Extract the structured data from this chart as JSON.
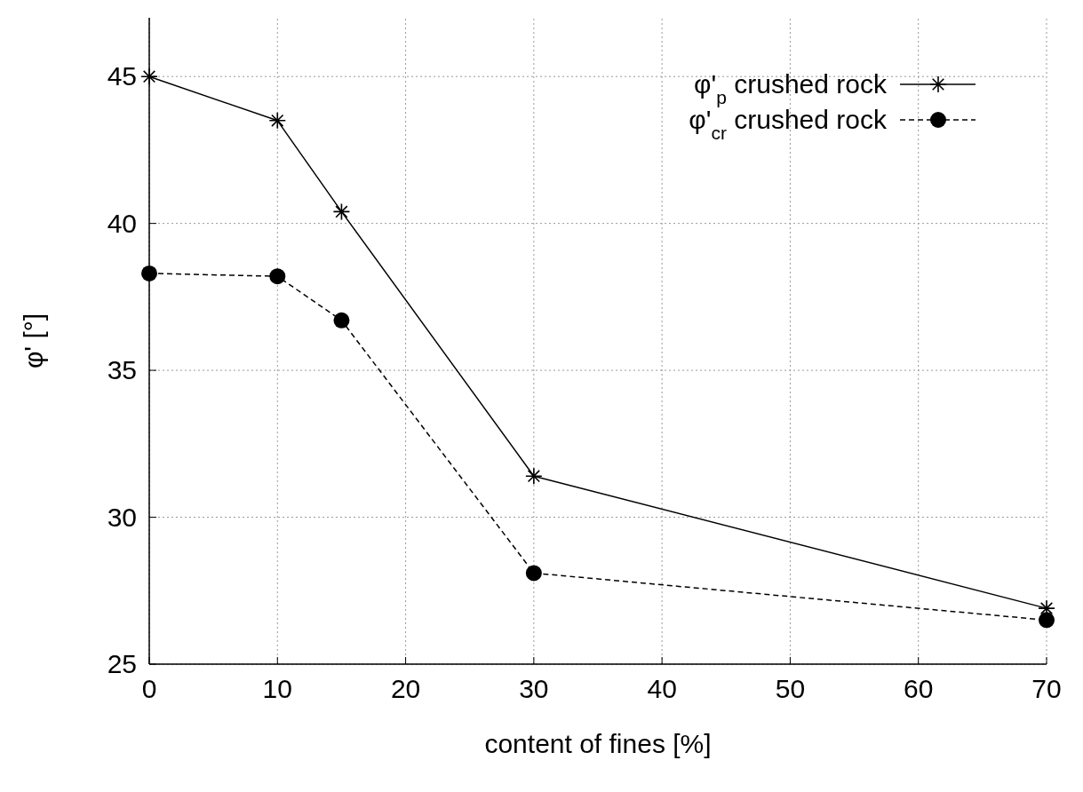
{
  "chart_data": {
    "type": "line",
    "xlabel": "content of fines [%]",
    "ylabel": "φ' [°]",
    "x": [
      0,
      10,
      15,
      30,
      70
    ],
    "xlim": [
      0,
      70
    ],
    "xticks": [
      0,
      10,
      20,
      30,
      40,
      50,
      60,
      70
    ],
    "ylim": [
      25,
      47
    ],
    "yticks": [
      25,
      30,
      35,
      40,
      45
    ],
    "grid": true,
    "legend": "top right",
    "series": [
      {
        "name": "φ'$_{p}$ crushed rock",
        "color": "#000000",
        "values": [
          45.0,
          43.5,
          40.4,
          31.4,
          26.9
        ],
        "marker": "cross",
        "line_style": "solid"
      },
      {
        "name": "φ'$_{cr}$ crushed rock",
        "color": "#000000",
        "values": [
          38.3,
          38.2,
          36.7,
          28.1,
          26.5
        ],
        "marker": "circle",
        "line_style": "dashed"
      }
    ]
  }
}
